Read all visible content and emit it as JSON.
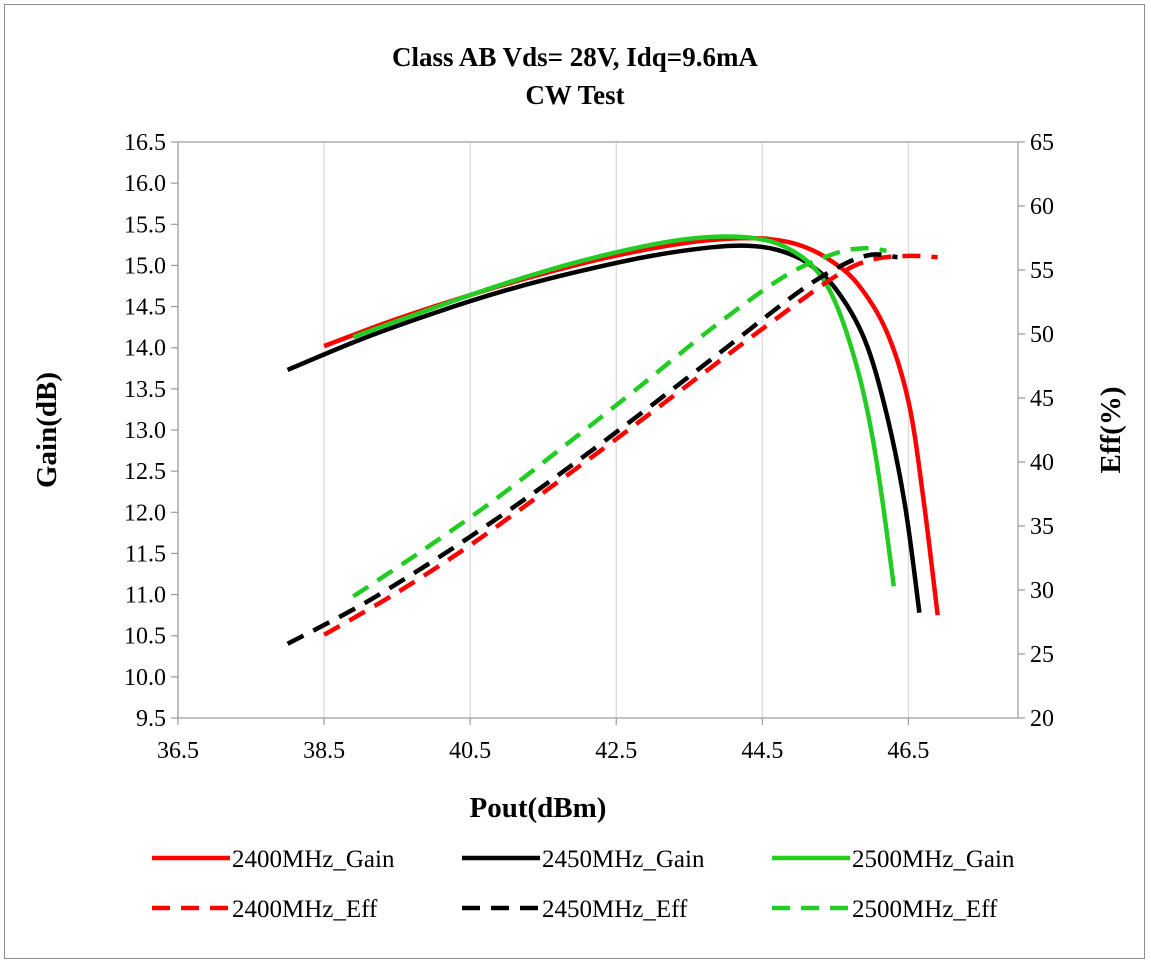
{
  "chart_data": {
    "type": "line",
    "title": "Class AB Vds= 28V, Idq=9.6mA",
    "subtitle": "CW Test",
    "xlabel": "Pout(dBm)",
    "ylabel": "Gain(dB)",
    "y2label": "Eff(%)",
    "xlim": [
      36.5,
      48.0
    ],
    "ylim": [
      9.5,
      16.5
    ],
    "y2lim": [
      20,
      65
    ],
    "xticks": [
      "36.5",
      "38.5",
      "40.5",
      "42.5",
      "44.5",
      "46.5"
    ],
    "yticks": [
      "9.5",
      "10.0",
      "10.5",
      "11.0",
      "11.5",
      "12.0",
      "12.5",
      "13.0",
      "13.5",
      "14.0",
      "14.5",
      "15.0",
      "15.5",
      "16.0",
      "16.5"
    ],
    "y2ticks": [
      "20",
      "25",
      "30",
      "35",
      "40",
      "45",
      "50",
      "55",
      "60",
      "65"
    ],
    "grid": "vertical",
    "legend_position": "bottom",
    "series": [
      {
        "name": "2400MHz_Gain",
        "axis": "left",
        "color": "#ff0000",
        "dash": false,
        "x": [
          38.5,
          39.5,
          40.5,
          41.5,
          42.5,
          43.5,
          44.2,
          44.6,
          45.0,
          45.4,
          45.8,
          46.2,
          46.5,
          46.7,
          46.9
        ],
        "y": [
          14.02,
          14.35,
          14.64,
          14.9,
          15.12,
          15.28,
          15.33,
          15.32,
          15.25,
          15.08,
          14.78,
          14.2,
          13.35,
          12.2,
          10.75
        ]
      },
      {
        "name": "2450MHz_Gain",
        "axis": "left",
        "color": "#000000",
        "dash": false,
        "x": [
          38.0,
          39.0,
          40.0,
          41.0,
          42.0,
          43.0,
          43.8,
          44.3,
          44.7,
          45.1,
          45.5,
          45.9,
          46.2,
          46.45,
          46.65
        ],
        "y": [
          13.73,
          14.1,
          14.42,
          14.7,
          14.93,
          15.12,
          15.22,
          15.24,
          15.19,
          15.04,
          14.72,
          14.1,
          13.2,
          12.1,
          10.78
        ]
      },
      {
        "name": "2500MHz_Gain",
        "axis": "left",
        "color": "#22cc22",
        "dash": false,
        "x": [
          38.9,
          39.8,
          40.7,
          41.6,
          42.5,
          43.3,
          43.9,
          44.4,
          44.8,
          45.2,
          45.5,
          45.8,
          46.0,
          46.15,
          46.3
        ],
        "y": [
          14.13,
          14.42,
          14.7,
          14.95,
          15.16,
          15.3,
          15.35,
          15.33,
          15.23,
          14.98,
          14.55,
          13.75,
          12.95,
          12.1,
          11.1
        ]
      },
      {
        "name": "2400MHz_Eff",
        "axis": "right",
        "color": "#ff0000",
        "dash": true,
        "x": [
          38.5,
          39.5,
          40.5,
          41.5,
          42.5,
          43.5,
          44.5,
          45.5,
          46.0,
          46.5,
          46.9
        ],
        "y": [
          26.5,
          29.8,
          33.5,
          37.6,
          41.8,
          46.1,
          50.4,
          54.5,
          55.8,
          56.1,
          56.0
        ]
      },
      {
        "name": "2450MHz_Eff",
        "axis": "right",
        "color": "#000000",
        "dash": true,
        "x": [
          38.0,
          39.0,
          40.0,
          41.0,
          42.0,
          43.0,
          44.0,
          45.0,
          45.6,
          46.0,
          46.35
        ],
        "y": [
          25.8,
          28.8,
          32.3,
          36.1,
          40.2,
          44.5,
          48.9,
          53.3,
          55.4,
          56.2,
          56.0
        ]
      },
      {
        "name": "2500MHz_Eff",
        "axis": "right",
        "color": "#22cc22",
        "dash": true,
        "x": [
          38.9,
          39.8,
          40.8,
          41.8,
          42.8,
          43.8,
          44.8,
          45.5,
          45.9,
          46.2
        ],
        "y": [
          29.5,
          32.9,
          36.9,
          41.3,
          45.8,
          50.4,
          54.5,
          56.3,
          56.7,
          56.5
        ]
      }
    ]
  }
}
